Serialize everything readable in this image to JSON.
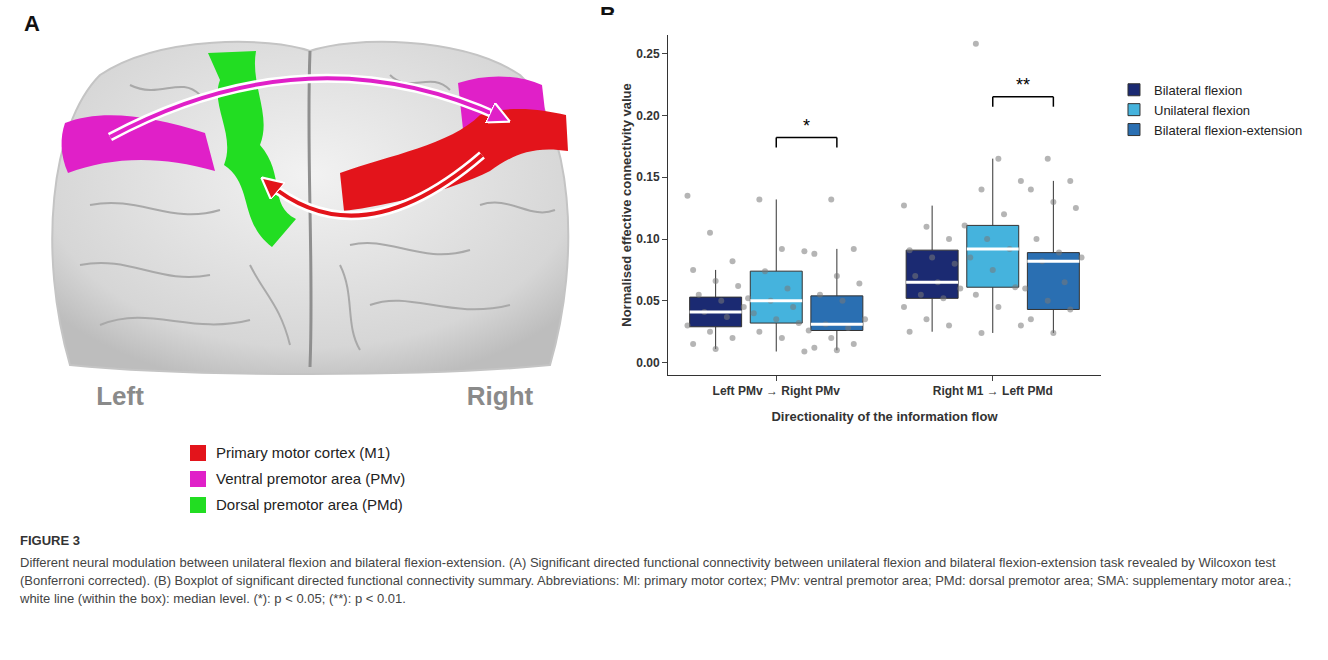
{
  "panel_letters": [
    "A",
    "B"
  ],
  "panel_a": {
    "hemisphere_labels": [
      "Left",
      "Right"
    ],
    "regions": [
      {
        "name": "Primary motor cortex (M1)",
        "color": "#e3141b"
      },
      {
        "name": "Ventral premotor area (PMv)",
        "color": "#e020c8"
      },
      {
        "name": "Dorsal premotor area (PMd)",
        "color": "#22dd22"
      }
    ]
  },
  "chart_data": {
    "type": "box",
    "y_label": "Normalised effective connectivity value",
    "x_label": "Directionality of the information flow",
    "categories": [
      "Left PMv → Right PMv",
      "Right M1 → Left PMd"
    ],
    "ylim": [
      -0.01,
      0.265
    ],
    "yticks": [
      {
        "value": 0,
        "label": "0.00"
      },
      {
        "value": 0.05,
        "label": "0.05"
      },
      {
        "value": 0.1,
        "label": "0.10"
      },
      {
        "value": 0.15,
        "label": "0.15"
      },
      {
        "value": 0.2,
        "label": "0.20"
      },
      {
        "value": 0.25,
        "label": "0.25"
      }
    ],
    "legend": "right",
    "grid": false,
    "series": [
      {
        "name": "Bilateral flexion",
        "color": "#1b2a72",
        "q1": [
          0.029,
          0.052
        ],
        "median": [
          0.041,
          0.065
        ],
        "q3": [
          0.053,
          0.091
        ],
        "lowerfence": [
          0.011,
          0.025
        ],
        "upperfence": [
          0.075,
          0.127
        ],
        "points": [
          [
            0.135,
            0.105,
            0.082,
            0.075,
            0.066,
            0.062,
            0.055,
            0.05,
            0.045,
            0.041,
            0.037,
            0.03,
            0.025,
            0.02,
            0.015,
            0.011
          ],
          [
            0.127,
            0.11,
            0.1,
            0.091,
            0.085,
            0.08,
            0.07,
            0.065,
            0.06,
            0.055,
            0.052,
            0.045,
            0.035,
            0.03,
            0.025
          ]
        ]
      },
      {
        "name": "Unilateral flexion",
        "color": "#45b3dd",
        "q1": [
          0.032,
          0.061
        ],
        "median": [
          0.05,
          0.092
        ],
        "q3": [
          0.074,
          0.111
        ],
        "lowerfence": [
          0.009,
          0.024
        ],
        "upperfence": [
          0.132,
          0.165
        ],
        "points": [
          [
            0.132,
            0.092,
            0.09,
            0.074,
            0.06,
            0.052,
            0.05,
            0.045,
            0.04,
            0.035,
            0.032,
            0.025,
            0.02,
            0.009
          ],
          [
            0.258,
            0.165,
            0.147,
            0.14,
            0.12,
            0.111,
            0.1,
            0.092,
            0.085,
            0.075,
            0.061,
            0.055,
            0.045,
            0.03,
            0.024
          ]
        ]
      },
      {
        "name": "Bilateral flexion-extension",
        "color": "#2a6fb2",
        "q1": [
          0.026,
          0.043
        ],
        "median": [
          0.031,
          0.082
        ],
        "q3": [
          0.054,
          0.089
        ],
        "lowerfence": [
          0.01,
          0.024
        ],
        "upperfence": [
          0.092,
          0.147
        ],
        "points": [
          [
            0.132,
            0.092,
            0.088,
            0.07,
            0.064,
            0.055,
            0.05,
            0.035,
            0.031,
            0.028,
            0.026,
            0.02,
            0.015,
            0.012,
            0.01
          ],
          [
            0.165,
            0.147,
            0.14,
            0.13,
            0.125,
            0.1,
            0.089,
            0.085,
            0.082,
            0.065,
            0.06,
            0.05,
            0.043,
            0.035,
            0.024
          ]
        ]
      }
    ],
    "annotations": [
      {
        "category": "Left PMv → Right PMv",
        "between": [
          "Unilateral flexion",
          "Bilateral flexion-extension"
        ],
        "text": "*"
      },
      {
        "category": "Right M1 → Left PMd",
        "between": [
          "Unilateral flexion",
          "Bilateral flexion-extension"
        ],
        "text": "**"
      }
    ]
  },
  "figure_label": "FIGURE 3",
  "caption": "Different neural modulation between unilateral flexion and bilateral flexion-extension. (A) Significant directed functional connectivity between unilateral flexion and bilateral flexion-extension task revealed by Wilcoxon test (Bonferroni corrected). (B) Boxplot of significant directed functional connectivity summary. Abbreviations: Ml: primary motor cortex; PMv: ventral premotor area; PMd: dorsal premotor area; SMA: supplementary motor area.; white line (within the box): median level. (*): p < 0.05; (**): p < 0.01."
}
